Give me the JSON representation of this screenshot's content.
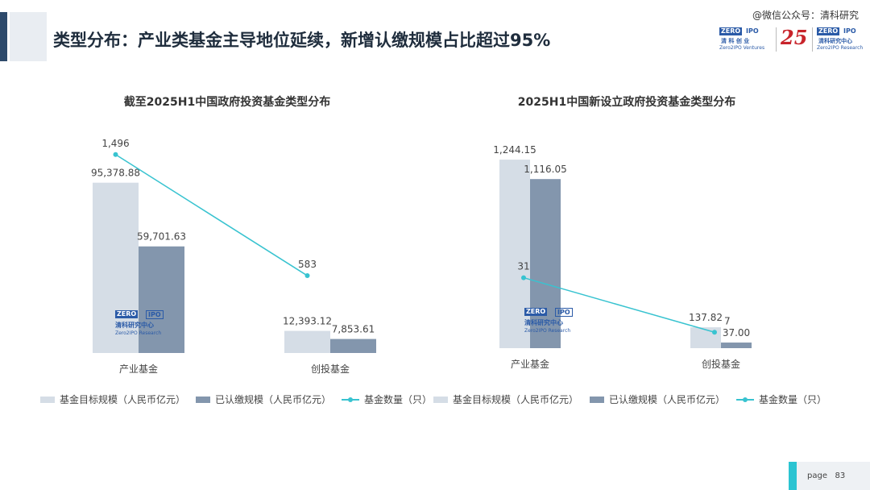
{
  "page": {
    "title": "类型分布：产业类基金主导地位延续，新增认缴规模占比超过95%",
    "wechat_tag": "@微信公众号：清科研究",
    "page_label": "page",
    "page_number": "83"
  },
  "logos": {
    "venture_zero": "ZERO",
    "venture_ipo": "IPO",
    "venture_cn": "清 科 创 业",
    "venture_en": "Zero2IPO Ventures",
    "anniversary": "25",
    "research_zero": "ZERO",
    "research_ipo": "IPO",
    "research_cn": "清科研究中心",
    "research_en": "Zero2IPO Research"
  },
  "watermark": {
    "zero": "ZERO",
    "ipo": "IPO",
    "cn": "清科研究中心",
    "en": "Zero2IPO Research"
  },
  "colors": {
    "target_bar": "#d5dde6",
    "paid_bar": "#8396ad",
    "count_line": "#38c3d0"
  },
  "chart_data": [
    {
      "type": "bar",
      "title": "截至2025H1中国政府投资基金类型分布",
      "categories": [
        "产业基金",
        "创投基金"
      ],
      "series": [
        {
          "name": "基金目标规模（人民币亿元）",
          "kind": "bar",
          "axis": "left",
          "values": [
            95378.88,
            12393.12
          ],
          "labels": [
            "95,378.88",
            "12,393.12"
          ]
        },
        {
          "name": "已认缴规模（人民币亿元）",
          "kind": "bar",
          "axis": "left",
          "values": [
            59701.63,
            7853.61
          ],
          "labels": [
            "59,701.63",
            "7,853.61"
          ]
        },
        {
          "name": "基金数量（只）",
          "kind": "line",
          "axis": "right",
          "values": [
            1496,
            583
          ],
          "labels": [
            "1,496",
            "583"
          ]
        }
      ],
      "ylim": [
        0,
        130000
      ],
      "y2lim": [
        0,
        1750
      ],
      "grid": false,
      "legend": "bottom"
    },
    {
      "type": "bar",
      "title": "2025H1中国新设立政府投资基金类型分布",
      "categories": [
        "产业基金",
        "创投基金"
      ],
      "series": [
        {
          "name": "基金目标规模（人民币亿元）",
          "kind": "bar",
          "axis": "left",
          "values": [
            1244.15,
            137.82
          ],
          "labels": [
            "1,244.15",
            "137.82"
          ]
        },
        {
          "name": "已认缴规模（人民币亿元）",
          "kind": "bar",
          "axis": "left",
          "values": [
            1116.05,
            37.0
          ],
          "labels": [
            "1,116.05",
            "37.00"
          ]
        },
        {
          "name": "基金数量（只）",
          "kind": "line",
          "axis": "right",
          "values": [
            31,
            7
          ],
          "labels": [
            "31",
            "7"
          ]
        }
      ],
      "ylim": [
        0,
        1500
      ],
      "y2lim": [
        0,
        100
      ],
      "grid": false,
      "legend": "bottom"
    }
  ]
}
